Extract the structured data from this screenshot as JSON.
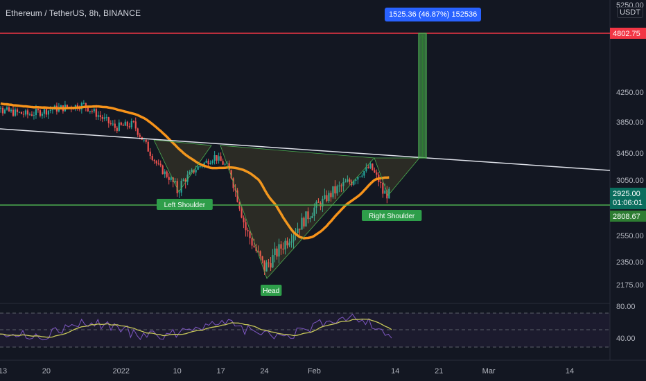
{
  "header": {
    "symbol_title": "Ethereum / TetherUS, 8h, BINANCE",
    "currency": "USDT"
  },
  "measure_label": "1525.36 (46.87%) 152536",
  "price_axis": {
    "ticks": [
      "4250.00",
      "3850.00",
      "3450.00",
      "3050.00",
      "2550.00",
      "2350.00",
      "2175.00"
    ],
    "top_partial": "5250.00"
  },
  "price_tags": {
    "target": "4802.75",
    "last_price": "2925.00",
    "countdown": "01:06:01",
    "support": "2808.67"
  },
  "pattern_labels": {
    "left_shoulder": "Left Shoulder",
    "head": "Head",
    "right_shoulder": "Right Shoulder"
  },
  "time_axis": {
    "ticks": [
      "13",
      "20",
      "2022",
      "10",
      "17",
      "24",
      "Feb",
      "14",
      "21",
      "Mar",
      "14"
    ]
  },
  "rsi_axis": {
    "ticks": [
      "80.00",
      "40.00"
    ]
  },
  "colors": {
    "background": "#131722",
    "bull": "#26a69a",
    "bear": "#ef5350",
    "ma": "#f7931a",
    "target_line": "#f23645",
    "support_line": "#4caf50",
    "neckline": "#e0e3eb",
    "label_green": "#2e9e4a",
    "rsi_line": "#7e57c2",
    "rsi_signal": "#c9c95a"
  },
  "chart_data": {
    "type": "candlestick",
    "title": "Ethereum / TetherUS, 8h, BINANCE",
    "x_ticks": [
      "13",
      "20",
      "2022",
      "10",
      "17",
      "24",
      "Feb",
      "14",
      "21",
      "Mar",
      "14"
    ],
    "y_ticks": [
      4250,
      3850,
      3450,
      3050,
      2550,
      2350,
      2175
    ],
    "price_path": [
      {
        "date": "Dec 13",
        "price": 4000
      },
      {
        "date": "Dec 17",
        "price": 3950
      },
      {
        "date": "Dec 21",
        "price": 4020
      },
      {
        "date": "Dec 26",
        "price": 4080
      },
      {
        "date": "Dec 31",
        "price": 3780
      },
      {
        "date": "Jan 3",
        "price": 3820
      },
      {
        "date": "Jan 5",
        "price": 3550
      },
      {
        "date": "Jan 7",
        "price": 3250
      },
      {
        "date": "Jan 10",
        "price": 2960
      },
      {
        "date": "Jan 13",
        "price": 3220
      },
      {
        "date": "Jan 16",
        "price": 3400
      },
      {
        "date": "Jan 18",
        "price": 3250
      },
      {
        "date": "Jan 21",
        "price": 2600
      },
      {
        "date": "Jan 24",
        "price": 2300
      },
      {
        "date": "Jan 27",
        "price": 2480
      },
      {
        "date": "Feb 1",
        "price": 2780
      },
      {
        "date": "Feb 4",
        "price": 2950
      },
      {
        "date": "Feb 7",
        "price": 3050
      },
      {
        "date": "Feb 10",
        "price": 3250
      },
      {
        "date": "Feb 12",
        "price": 2950
      },
      {
        "date": "Feb 13",
        "price": 2925
      }
    ],
    "horizontal_levels": [
      4802.75,
      2808.67
    ],
    "last_price": 2925.0,
    "measurement": {
      "change": 1525.36,
      "percent": 46.87,
      "ticks": 152536
    },
    "pattern": "inverse head and shoulders",
    "rsi_levels": [
      80,
      40
    ]
  }
}
